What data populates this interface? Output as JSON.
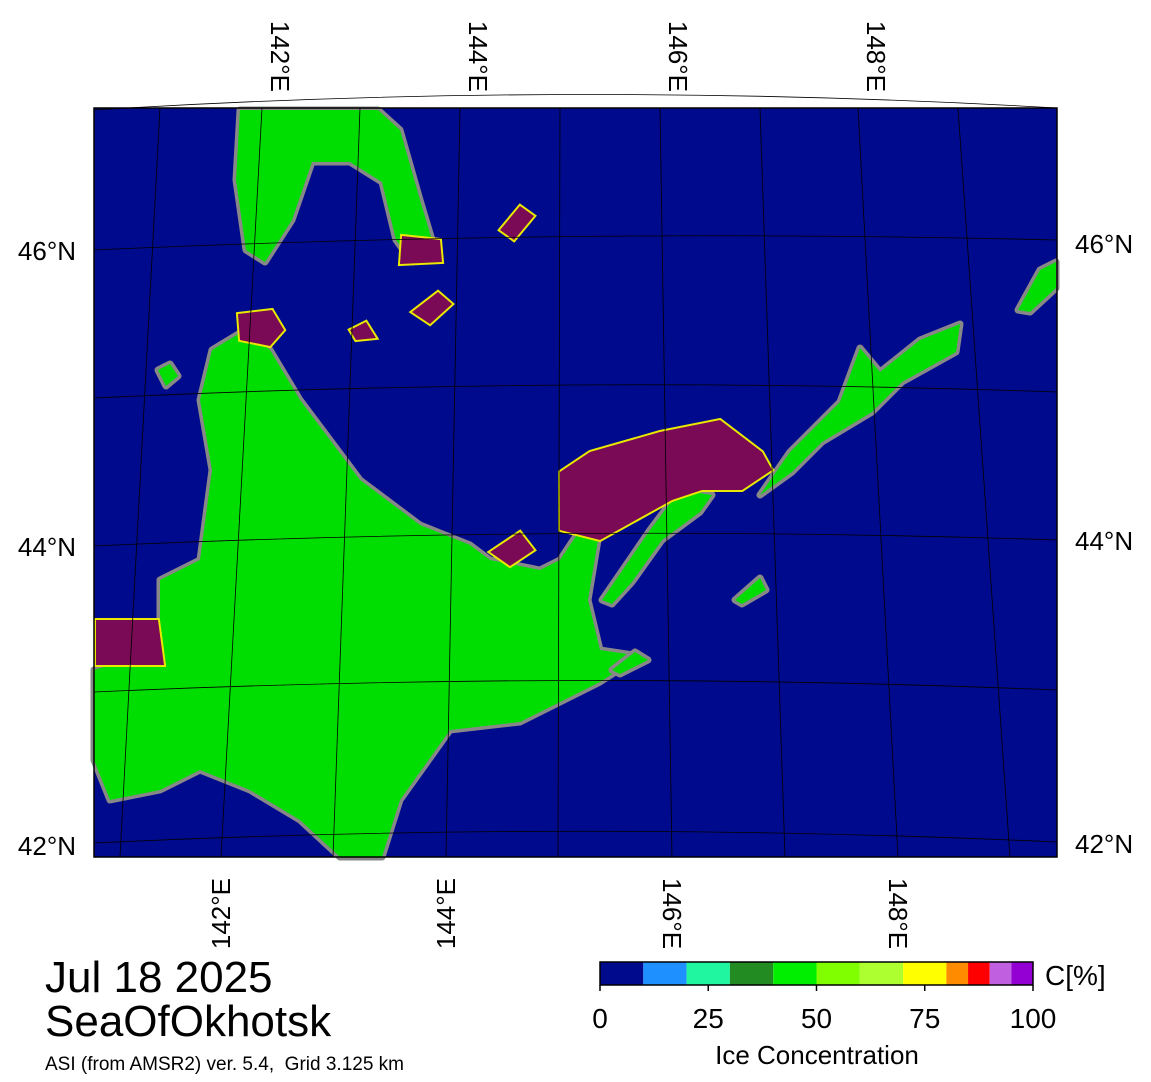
{
  "map": {
    "lon_labels": [
      "142°E",
      "144°E",
      "146°E",
      "148°E"
    ],
    "lat_labels": [
      "46°N",
      "44°N",
      "42°N"
    ]
  },
  "date": "Jul 18 2025",
  "region": "SeaOfOkhotsk",
  "caption": "ASI (from AMSR2) ver. 5.4,  Grid 3.125 km",
  "colorbar": {
    "bins": [
      0,
      10,
      20,
      30,
      40,
      50,
      60,
      70,
      80,
      85,
      90,
      95,
      100
    ],
    "colors": [
      "#000a8c",
      "#1e90ff",
      "#20f5a0",
      "#228b22",
      "#00ee00",
      "#7fff00",
      "#adff2f",
      "#ffff00",
      "#ff8c00",
      "#ff0000",
      "#c060e0",
      "#9400d3"
    ],
    "ticks": [
      0,
      25,
      50,
      75,
      100
    ],
    "unit_label": "C[%]",
    "label": "Ice Concentration"
  }
}
